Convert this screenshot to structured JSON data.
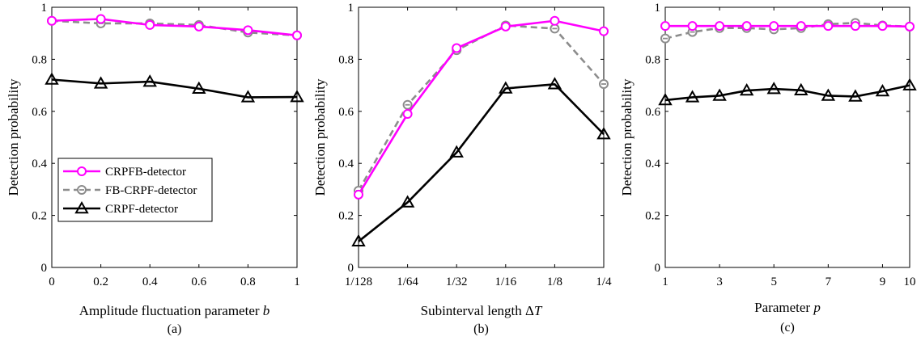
{
  "colors": {
    "crpfb": "#ff00ff",
    "fbcrpf": "#8c8c8c",
    "crpf": "#000000"
  },
  "legend": {
    "placement": "lower-left of panel (a)",
    "entries": [
      "CRPFB-detector",
      "FB-CRPF-detector",
      "CRPF-detector"
    ]
  },
  "chart_data": [
    {
      "type": "line",
      "caption": "(a)",
      "xlabel": "Amplitude fluctuation parameter b",
      "ylabel": "Detection probability",
      "x": [
        0,
        0.2,
        0.4,
        0.6,
        0.8,
        1
      ],
      "xticks": [
        "0",
        "0.2",
        "0.4",
        "0.6",
        "0.8",
        "1"
      ],
      "xlim": [
        0,
        1
      ],
      "ylim": [
        0,
        1
      ],
      "yticks": [
        "0",
        "0.2",
        "0.4",
        "0.6",
        "0.8",
        "1"
      ],
      "grid": false,
      "series": [
        {
          "name": "CRPFB-detector",
          "values": [
            0.948,
            0.955,
            0.932,
            0.926,
            0.912,
            0.892
          ]
        },
        {
          "name": "FB-CRPF-detector",
          "values": [
            0.948,
            0.938,
            0.938,
            0.932,
            0.903,
            0.892
          ]
        },
        {
          "name": "CRPF-detector",
          "values": [
            0.722,
            0.707,
            0.714,
            0.687,
            0.654,
            0.655
          ]
        }
      ]
    },
    {
      "type": "line",
      "caption": "(b)",
      "xlabel": "Subinterval length ΔT",
      "ylabel": "Detection probability",
      "x": [
        0,
        1,
        2,
        3,
        4,
        5
      ],
      "xticks": [
        "1/128",
        "1/64",
        "1/32",
        "1/16",
        "1/8",
        "1/4"
      ],
      "xlim": [
        0,
        5
      ],
      "ylim": [
        0,
        1
      ],
      "yticks": [
        "0",
        "0.2",
        "0.4",
        "0.6",
        "0.8",
        "1"
      ],
      "grid": false,
      "series": [
        {
          "name": "CRPFB-detector",
          "values": [
            0.28,
            0.59,
            0.843,
            0.926,
            0.948,
            0.908
          ]
        },
        {
          "name": "FB-CRPF-detector",
          "values": [
            0.295,
            0.625,
            0.835,
            0.93,
            0.918,
            0.705
          ]
        },
        {
          "name": "CRPF-detector",
          "values": [
            0.1,
            0.25,
            0.442,
            0.688,
            0.704,
            0.512
          ]
        }
      ]
    },
    {
      "type": "line",
      "caption": "(c)",
      "xlabel": "Parameter p",
      "ylabel": "Detection probability",
      "x": [
        1,
        2,
        3,
        4,
        5,
        6,
        7,
        8,
        9,
        10
      ],
      "xticks": [
        "1",
        "3",
        "5",
        "7",
        "9",
        "10"
      ],
      "xtick_values": [
        1,
        3,
        5,
        7,
        9,
        10
      ],
      "xlim": [
        1,
        10
      ],
      "ylim": [
        0,
        1
      ],
      "yticks": [
        "0",
        "0.2",
        "0.4",
        "0.6",
        "0.8",
        "1"
      ],
      "grid": false,
      "series": [
        {
          "name": "CRPFB-detector",
          "values": [
            0.928,
            0.928,
            0.928,
            0.928,
            0.928,
            0.928,
            0.928,
            0.928,
            0.928,
            0.926
          ]
        },
        {
          "name": "FB-CRPF-detector",
          "values": [
            0.88,
            0.905,
            0.92,
            0.92,
            0.915,
            0.92,
            0.935,
            0.94,
            0.93,
            0.926
          ]
        },
        {
          "name": "CRPF-detector",
          "values": [
            0.643,
            0.654,
            0.66,
            0.68,
            0.686,
            0.681,
            0.66,
            0.657,
            0.677,
            0.7
          ]
        }
      ]
    }
  ]
}
